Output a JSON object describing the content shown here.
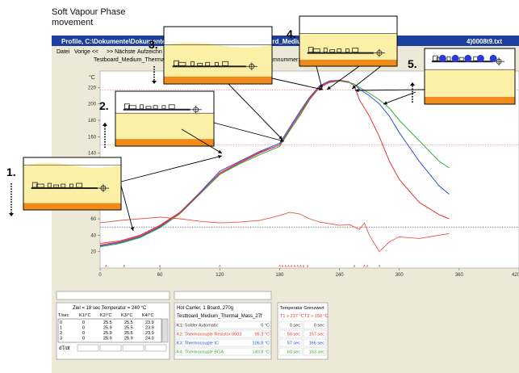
{
  "slide": {
    "title_line1": "Soft Vapour Phase",
    "title_line2": "movement",
    "steps": [
      "1.",
      "2.",
      "3.",
      "4.",
      "5."
    ]
  },
  "window": {
    "title": "Profile, C:\\Dokumente\\Dokumente\\",
    "title_right": "oard_Medium_",
    "title_right2": "4)0008t9.txt",
    "menu": [
      "Datei",
      "Vorige <<",
      ">> Nächste",
      "Aufzeichn"
    ],
    "subtitle": "Testboard_Medium_Thermal_Mass_27",
    "subtitle_right": "ogrammnummer: 10"
  },
  "chart_data": {
    "type": "line",
    "y_unit": "°C",
    "xlim": [
      0,
      420
    ],
    "ylim": [
      0,
      240
    ],
    "x_ticks": [
      0,
      60,
      120,
      180,
      240,
      300,
      360,
      420
    ],
    "y_ticks": [
      20,
      40,
      60,
      80,
      100,
      120,
      140,
      160,
      180,
      200,
      220
    ],
    "ref_lines": [
      217,
      150,
      50
    ],
    "series": [
      {
        "color": "#e03a2a",
        "x": [
          0,
          20,
          40,
          60,
          80,
          100,
          120,
          140,
          160,
          180,
          200,
          210,
          220,
          230,
          240,
          250,
          255,
          260,
          270,
          280,
          290,
          300,
          320,
          340,
          350
        ],
        "y": [
          30,
          33,
          40,
          52,
          68,
          92,
          115,
          128,
          140,
          150,
          185,
          205,
          220,
          226,
          228,
          226,
          222,
          205,
          185,
          160,
          130,
          108,
          80,
          65,
          60
        ]
      },
      {
        "color": "#2b4fd8",
        "x": [
          0,
          20,
          40,
          60,
          80,
          100,
          120,
          140,
          160,
          180,
          200,
          210,
          220,
          230,
          240,
          250,
          255,
          260,
          270,
          280,
          290,
          300,
          320,
          340,
          350
        ],
        "y": [
          27,
          31,
          38,
          50,
          67,
          92,
          118,
          130,
          142,
          152,
          190,
          208,
          222,
          228,
          229,
          226,
          224,
          218,
          210,
          200,
          185,
          165,
          130,
          100,
          90
        ]
      },
      {
        "color": "#2fae3a",
        "x": [
          0,
          20,
          40,
          60,
          80,
          100,
          120,
          140,
          160,
          180,
          200,
          210,
          220,
          230,
          240,
          250,
          255,
          260,
          270,
          280,
          290,
          300,
          320,
          340,
          350
        ],
        "y": [
          26,
          30,
          37,
          49,
          66,
          90,
          114,
          127,
          138,
          148,
          186,
          206,
          221,
          227,
          228,
          226,
          224,
          220,
          213,
          205,
          195,
          180,
          155,
          130,
          122
        ]
      },
      {
        "color": "#d92e6a",
        "x": [
          0,
          20,
          40,
          60,
          80,
          100,
          120,
          140,
          160,
          180,
          200,
          210,
          220,
          230,
          240,
          250
        ],
        "y": [
          28,
          32,
          39,
          51,
          67,
          91,
          116,
          129,
          141,
          150,
          188,
          207,
          221,
          227,
          229,
          227
        ]
      }
    ],
    "rate_series": {
      "color": "#e8554a",
      "x": [
        0,
        20,
        40,
        60,
        80,
        100,
        120,
        140,
        160,
        180,
        190,
        200,
        210,
        220,
        230,
        240,
        250,
        255,
        260,
        265,
        270,
        275,
        280,
        290,
        300,
        320,
        340,
        350
      ],
      "y": [
        55,
        58,
        60,
        62,
        60,
        57,
        55,
        56,
        58,
        64,
        68,
        66,
        60,
        56,
        54,
        52,
        53,
        50,
        47,
        55,
        40,
        30,
        20,
        32,
        38,
        36,
        40,
        42
      ]
    },
    "x_markers": [
      6,
      24,
      60,
      120,
      180,
      183,
      186,
      189,
      192,
      195,
      198,
      201,
      204,
      208,
      255,
      265,
      268,
      280
    ]
  },
  "panels": {
    "ziel": "Ziel = 18 sec Temperatur = 240 °C",
    "table_headers": [
      "T/sec",
      "K1/°C",
      "K2/°C",
      "K3/°C",
      "K4/°C"
    ],
    "table_rows": [
      [
        "0",
        "0",
        "25.5",
        "25.5",
        "23.9"
      ],
      [
        "1",
        "0",
        "25.9",
        "25.5",
        "23.9"
      ],
      [
        "2",
        "0",
        "25.9",
        "25.5",
        "23.9"
      ],
      [
        "3",
        "0",
        "25.9",
        "25.9",
        "24.0"
      ]
    ],
    "dt_label": "dT/dt",
    "hot_carrier": "Hot Carrier, 1 Board, 270g",
    "testboard": "Testboard_Medium_Thermal_Mass_27f",
    "channels": [
      {
        "name": "K1: Solder Automatic",
        "value": "0 °C",
        "color": "#333333"
      },
      {
        "name": "K2: Thermocouple Resistor 0603",
        "value": "95.3 °C",
        "color": "#e03a2a"
      },
      {
        "name": "K3: Thermocouple IC",
        "value": "106.8 °C",
        "color": "#2b4fd8"
      },
      {
        "name": "K4: Thermocouple BGA",
        "value": "140.8 °C",
        "color": "#2fae3a"
      }
    ],
    "grenzwert_title": "Temperatur Grenzwert",
    "t1_label": "T1 > 217 °C",
    "t2_label": "T2 > 150 °C",
    "grenz_rows": [
      [
        "0 sec",
        "0 sec"
      ],
      [
        "50 sec",
        "157 sec"
      ],
      [
        "57 sec",
        "166 sec"
      ],
      [
        "60 sec",
        "163 sec"
      ]
    ]
  },
  "colors": {
    "vapour": "#fbf0a6",
    "heater": "#f08a1a",
    "circle": "#2b3bd1",
    "titlebar": "#1c3e9c"
  }
}
